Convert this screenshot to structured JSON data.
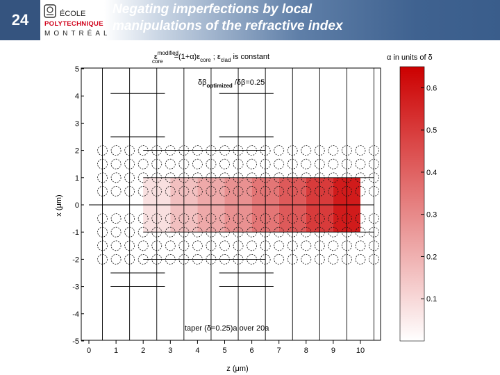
{
  "header": {
    "slide_number": "24",
    "logo": {
      "line1": "ÉCOLE",
      "line2": "POLYTECHNIQUE",
      "line3": "MONTRÉAL"
    },
    "title": "Negating imperfections by local manipulations of the refractive index"
  },
  "figure": {
    "equation": {
      "eps": "ε",
      "sup_modified": "modified",
      "sub_core": "core",
      "middle": "=(1+α)ε",
      "sub_core2": "core",
      "sep": " ; ε",
      "sub_clad": "clad",
      "tail": " is constant"
    },
    "beta_ratio": {
      "main": "δβ",
      "sub": "optimized",
      "tail": " /δβ=0.25"
    },
    "taper_label": "taper (δ=0.25)a over 20a",
    "x_axis_label": "z (μm)",
    "y_axis_label": "x (μm)",
    "x_ticks": [
      "0",
      "1",
      "2",
      "3",
      "4",
      "5",
      "6",
      "7",
      "8",
      "9",
      "10"
    ],
    "y_ticks": [
      "5",
      "4",
      "3",
      "2",
      "1",
      "0",
      "-1",
      "-2",
      "-3",
      "-4",
      "-5"
    ],
    "colorbar_title": "α in units of δ",
    "colorbar_ticks": [
      "0.6",
      "0.5",
      "0.4",
      "0.3",
      "0.2",
      "0.1"
    ],
    "colorbar_colors": {
      "min": "#ffffff",
      "max": "#cc0000"
    },
    "core_alpha": [
      {
        "z": [
          2,
          3
        ],
        "alpha": 0.08
      },
      {
        "z": [
          3,
          4
        ],
        "alpha": 0.16
      },
      {
        "z": [
          4,
          5
        ],
        "alpha": 0.22
      },
      {
        "z": [
          5,
          6
        ],
        "alpha": 0.28
      },
      {
        "z": [
          6,
          7
        ],
        "alpha": 0.35
      },
      {
        "z": [
          7,
          8
        ],
        "alpha": 0.42
      },
      {
        "z": [
          8,
          9
        ],
        "alpha": 0.5
      },
      {
        "z": [
          9,
          10
        ],
        "alpha": 0.58
      }
    ]
  }
}
